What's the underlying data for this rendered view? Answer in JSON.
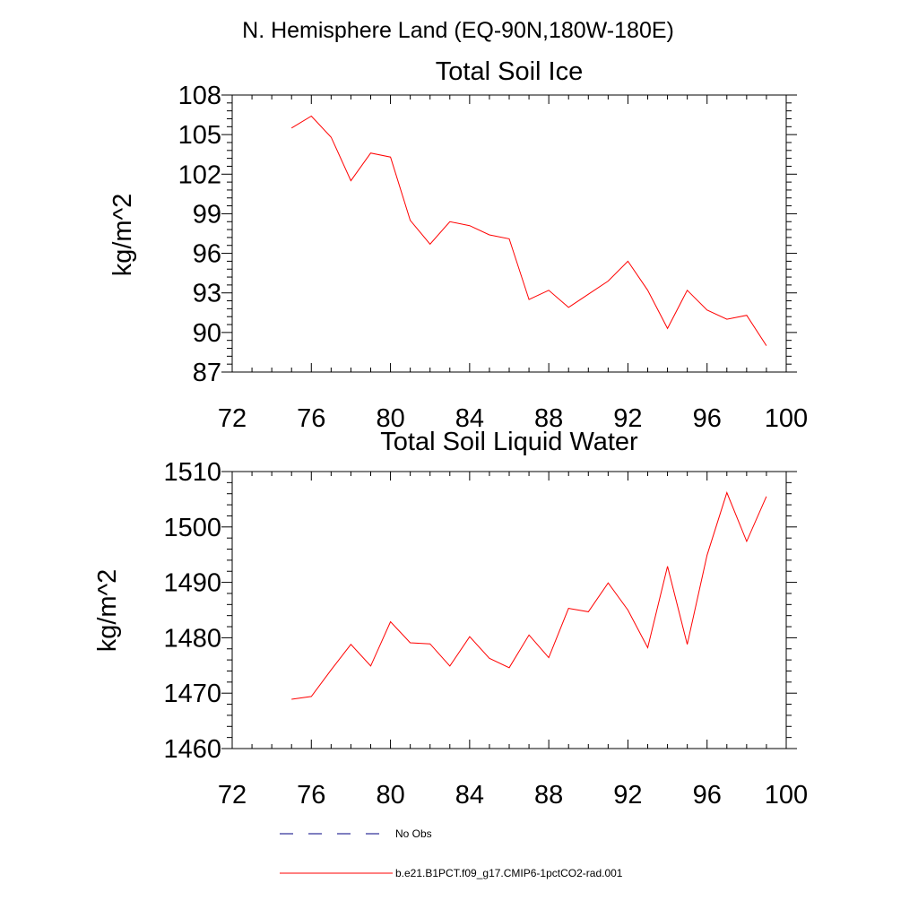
{
  "figure": {
    "title": "N. Hemisphere Land (EQ-90N,180W-180E)"
  },
  "colors": {
    "series": "#ff0000",
    "obs": "#000080",
    "axis": "#000000",
    "background": "#ffffff"
  },
  "chart_data": [
    {
      "type": "line",
      "title": "Total Soil Ice",
      "xlabel": "",
      "ylabel": "kg/m^2",
      "xlim": [
        72,
        100
      ],
      "ylim": [
        87,
        108
      ],
      "xticks": [
        72,
        76,
        80,
        84,
        88,
        92,
        96,
        100
      ],
      "yticks": [
        87,
        90,
        93,
        96,
        99,
        102,
        105,
        108
      ],
      "grid": false,
      "x": [
        75,
        76,
        77,
        78,
        79,
        80,
        81,
        82,
        83,
        84,
        85,
        86,
        87,
        88,
        89,
        90,
        91,
        92,
        93,
        94,
        95,
        96,
        97,
        98,
        99
      ],
      "series": [
        {
          "name": "b.e21.B1PCT.f09_g17.CMIP6-1pctCO2-rad.001",
          "values": [
            105.5,
            106.4,
            104.8,
            101.5,
            103.6,
            103.3,
            98.5,
            96.7,
            98.4,
            98.1,
            97.4,
            97.1,
            92.5,
            93.2,
            91.9,
            92.9,
            93.9,
            95.4,
            93.2,
            90.3,
            93.2,
            91.7,
            91.0,
            91.3,
            89.0
          ]
        }
      ]
    },
    {
      "type": "line",
      "title": "Total Soil Liquid Water",
      "xlabel": "",
      "ylabel": "kg/m^2",
      "xlim": [
        72,
        100
      ],
      "ylim": [
        1460,
        1510
      ],
      "xticks": [
        72,
        76,
        80,
        84,
        88,
        92,
        96,
        100
      ],
      "yticks": [
        1460,
        1470,
        1480,
        1490,
        1500,
        1510
      ],
      "grid": false,
      "x": [
        75,
        76,
        77,
        78,
        79,
        80,
        81,
        82,
        83,
        84,
        85,
        86,
        87,
        88,
        89,
        90,
        91,
        92,
        93,
        94,
        95,
        96,
        97,
        98,
        99
      ],
      "series": [
        {
          "name": "b.e21.B1PCT.f09_g17.CMIP6-1pctCO2-rad.001",
          "values": [
            1468.9,
            1469.4,
            1474.2,
            1478.8,
            1474.9,
            1482.9,
            1479.1,
            1478.9,
            1474.9,
            1480.2,
            1476.3,
            1474.6,
            1480.5,
            1476.4,
            1485.3,
            1484.7,
            1489.9,
            1485.0,
            1478.2,
            1492.9,
            1478.8,
            1494.9,
            1506.2,
            1497.4,
            1505.5
          ]
        }
      ]
    }
  ],
  "legend": {
    "placement": "bottom",
    "items": [
      {
        "label": "No Obs",
        "style": "dashed",
        "color": "#000080"
      },
      {
        "label": "b.e21.B1PCT.f09_g17.CMIP6-1pctCO2-rad.001",
        "style": "solid",
        "color": "#ff0000"
      }
    ]
  }
}
